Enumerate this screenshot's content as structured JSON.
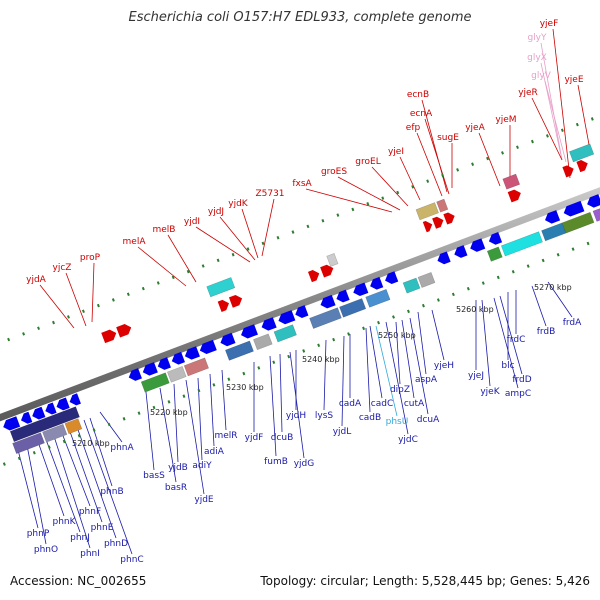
{
  "title": "Escherichia coli O157:H7 EDL933, complete genome",
  "footer": {
    "accession": "Accession: NC_002655",
    "summary": "Topology: circular; Length: 5,528,445 bp; Genes: 5,426"
  },
  "colors": {
    "rna_label": "#e8a0c8",
    "top_label": "#cc0000",
    "bottom_label": "#1a1aaa",
    "special_label": "#33aadd",
    "forward_gene": "#dd0000",
    "reverse_gene": "#0000ee",
    "backbone": "#999999"
  },
  "kbp_ticks": [
    "5210 kbp",
    "5220 kbp",
    "5230 kbp",
    "5240 kbp",
    "5250 kbp",
    "5260 kbp",
    "5270 kbp"
  ],
  "top_labels": [
    "yjeF",
    "glyY",
    "glyX",
    "glyV",
    "yjeE",
    "yjeR",
    "ecnB",
    "ecnA",
    "efp",
    "sugE",
    "yjeA",
    "yjeM",
    "yjeI",
    "groEL",
    "groES",
    "fxsA",
    "Z5731",
    "yjdK",
    "yjdJ",
    "yjdI",
    "melB",
    "melA",
    "proP",
    "yjcZ",
    "yjdA"
  ],
  "bottom_labels": [
    "frdA",
    "frdB",
    "frdC",
    "blc",
    "frdD",
    "ampC",
    "yjeJ",
    "yjeK",
    "yjeH",
    "aspA",
    "dipZ",
    "cutA",
    "dcuA",
    "cadC",
    "cadB",
    "phsU",
    "yjdC",
    "cadA",
    "yjdL",
    "lysS",
    "yjdH",
    "yjdG",
    "dcuB",
    "fumB",
    "yjdF",
    "melR",
    "adiA",
    "adiY",
    "yjdE",
    "yjdB",
    "basR",
    "basS",
    "phnA",
    "phnB",
    "phnC",
    "phnD",
    "phnE",
    "phnF",
    "phnI",
    "phnJ",
    "phnK",
    "phnO",
    "phnP"
  ]
}
